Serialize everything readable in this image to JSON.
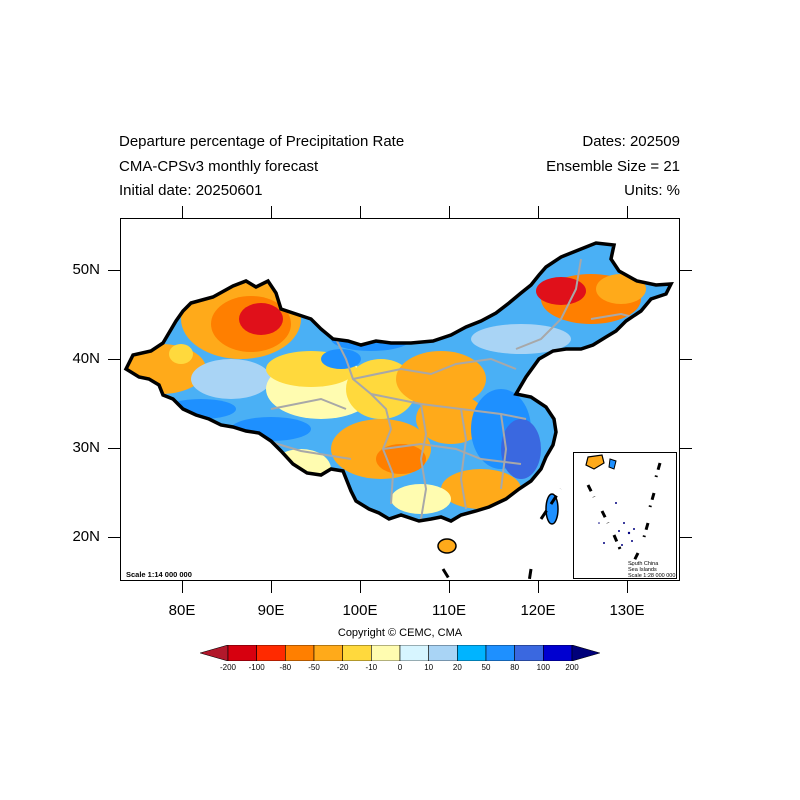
{
  "title": {
    "left": [
      "Departure percentage of Precipitation Rate",
      "CMA-CPSv3 monthly forecast",
      "Initial date: 20250601"
    ],
    "right": [
      "Dates: 202509",
      "Ensemble Size = 21",
      "Units: %"
    ]
  },
  "axes": {
    "lat_labels": [
      "50N",
      "40N",
      "30N",
      "20N"
    ],
    "lon_labels": [
      "80E",
      "90E",
      "100E",
      "110E",
      "120E",
      "130E"
    ],
    "lat_range": [
      15,
      56
    ],
    "lon_range": [
      73.5,
      136.5
    ]
  },
  "map": {
    "scale_label": "Scale 1:14 000 000",
    "inset": {
      "lines": [
        "South China",
        "Sea Islands",
        "Scale 1:28 000 000"
      ]
    }
  },
  "colorbar": {
    "labels": [
      "-200",
      "-100",
      "-80",
      "-50",
      "-20",
      "-10",
      "0",
      "10",
      "20",
      "50",
      "80",
      "100",
      "200"
    ],
    "colors": [
      "#b2182b",
      "#d7000f",
      "#ff2a00",
      "#ff7f00",
      "#ffaa1a",
      "#ffd93d",
      "#fffcb0",
      "#d7f5ff",
      "#a9d4f5",
      "#00b4ff",
      "#1e90ff",
      "#3a68e0",
      "#0000d0",
      "#00007a"
    ]
  },
  "footer": {
    "copyright": "Copyright © CEMC, CMA"
  }
}
